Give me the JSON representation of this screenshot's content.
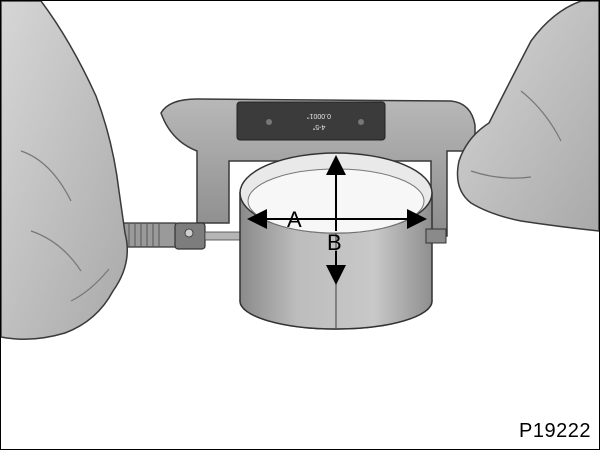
{
  "labels": {
    "dimension_a": "A",
    "dimension_b": "B"
  },
  "gauge_plate": {
    "range_text": "4-5\"",
    "resolution_text": "0.0001\""
  },
  "figure_id": "P19222"
}
